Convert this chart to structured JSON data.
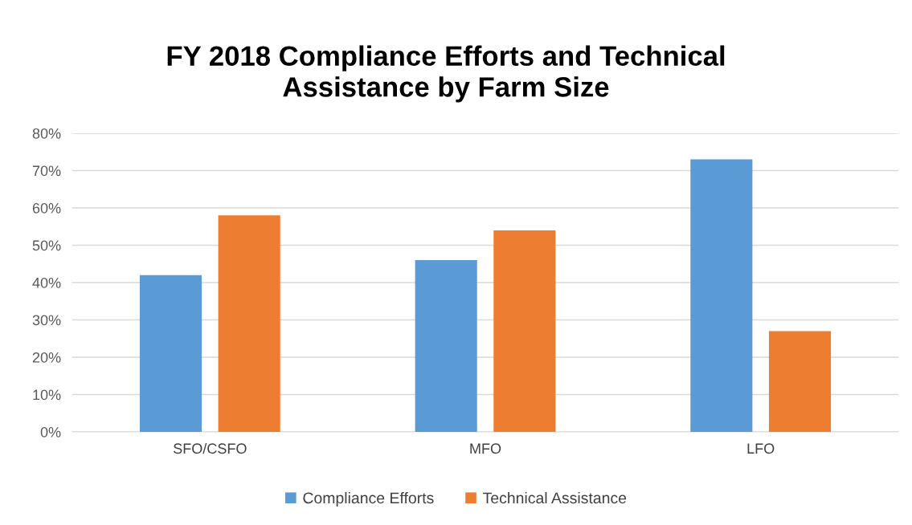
{
  "chart_data": {
    "type": "bar",
    "title": "FY 2018 Compliance Efforts and Technical\nAssistance by Farm Size",
    "categories": [
      "SFO/CSFO",
      "MFO",
      "LFO"
    ],
    "series": [
      {
        "name": "Compliance Efforts",
        "color": "#5b9bd5",
        "values": [
          42,
          46,
          73
        ]
      },
      {
        "name": "Technical Assistance",
        "color": "#ed7d31",
        "values": [
          58,
          54,
          27
        ]
      }
    ],
    "ylim": [
      0,
      80
    ],
    "yticks": [
      {
        "value": 0,
        "label": "0%"
      },
      {
        "value": 10,
        "label": "10%"
      },
      {
        "value": 20,
        "label": "20%"
      },
      {
        "value": 30,
        "label": "30%"
      },
      {
        "value": 40,
        "label": "40%"
      },
      {
        "value": 50,
        "label": "50%"
      },
      {
        "value": 60,
        "label": "60%"
      },
      {
        "value": 70,
        "label": "70%"
      },
      {
        "value": 80,
        "label": "80%"
      }
    ],
    "grid": "y",
    "legend": "bottom"
  }
}
